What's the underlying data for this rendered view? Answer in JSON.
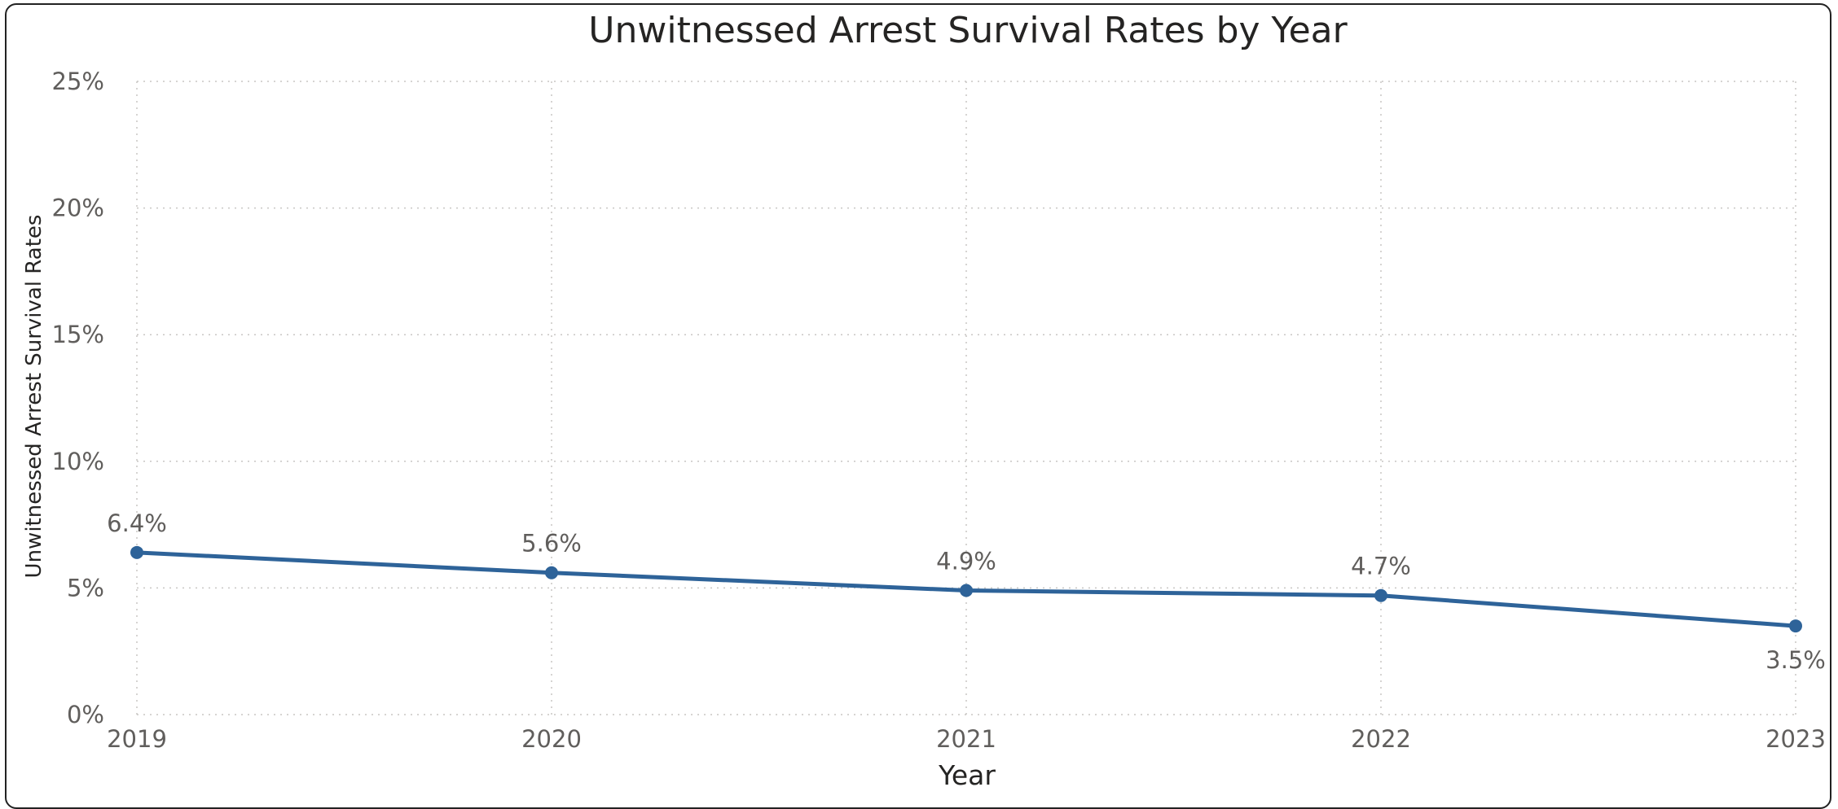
{
  "chart_data": {
    "type": "line",
    "title": "Unwitnessed Arrest Survival Rates by Year",
    "xlabel": "Year",
    "ylabel": "Unwitnessed Arrest Survival Rates",
    "categories": [
      "2019",
      "2020",
      "2021",
      "2022",
      "2023"
    ],
    "series": [
      {
        "values": [
          6.4,
          5.6,
          4.9,
          4.7,
          3.5
        ],
        "data_labels": [
          "6.4%",
          "5.6%",
          "4.9%",
          "4.7%",
          "3.5%"
        ],
        "color": "#2e6399"
      }
    ],
    "ylim": [
      0,
      25
    ],
    "y_ticks": [
      0,
      5,
      10,
      15,
      20,
      25
    ],
    "y_tick_labels": [
      "0%",
      "5%",
      "10%",
      "15%",
      "20%",
      "25%"
    ],
    "grid": true,
    "legend": "none"
  }
}
